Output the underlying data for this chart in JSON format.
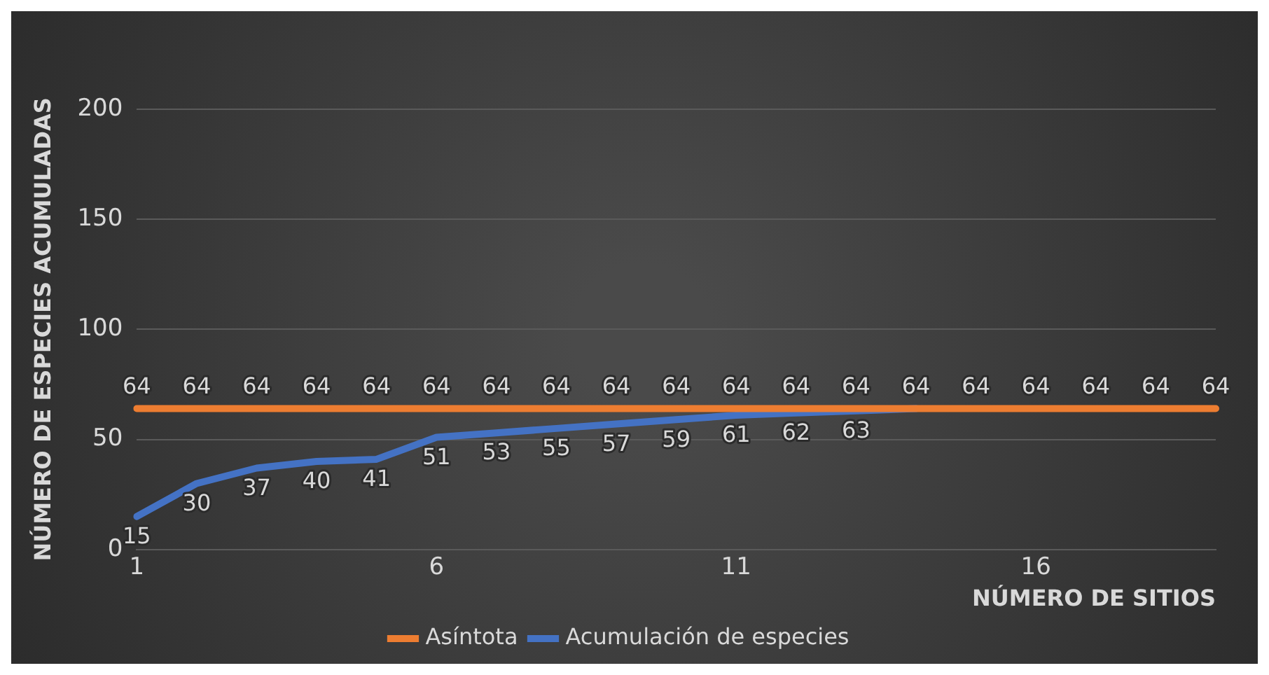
{
  "chart_data": {
    "type": "line",
    "xlabel": "NÚMERO DE SITIOS",
    "ylabel": "NÚMERO DE ESPECIES ACUMULADAS",
    "categories": [
      "1",
      null,
      null,
      null,
      null,
      "6",
      null,
      null,
      null,
      null,
      "11",
      null,
      null,
      null,
      null,
      "16",
      null,
      null,
      null
    ],
    "series": [
      {
        "name": "Acumulación de especies",
        "color": "#4472c4",
        "values": [
          15,
          30,
          37,
          40,
          41,
          51,
          53,
          55,
          57,
          59,
          61,
          62,
          63,
          64,
          null,
          null,
          null,
          null,
          null
        ],
        "value_labels": [
          "15",
          "30",
          "37",
          "40",
          "41",
          "51",
          "53",
          "55",
          "57",
          "59",
          "61",
          "62",
          "63",
          null,
          null,
          null,
          null,
          null,
          null
        ]
      },
      {
        "name": "Asíntota",
        "color": "#ed7d31",
        "values": [
          64,
          64,
          64,
          64,
          64,
          64,
          64,
          64,
          64,
          64,
          64,
          64,
          64,
          64,
          64,
          64,
          64,
          64,
          64
        ]
      }
    ],
    "ylim": [
      0,
      200
    ],
    "yticks": [
      0,
      50,
      100,
      150,
      200
    ],
    "grid": "y",
    "legend": "bottom",
    "data_labels": true,
    "marker": "none",
    "line_style": "solid"
  }
}
